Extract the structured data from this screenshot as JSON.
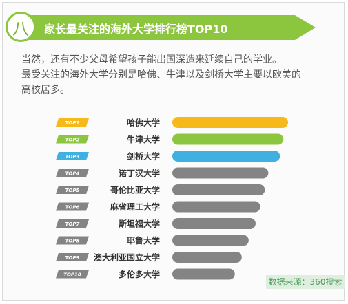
{
  "header": {
    "number": "八",
    "title": "家长最关注的海外大学排行榜TOP10"
  },
  "intro": {
    "line1": "当然，还有不少父母希望孩子能出国深造来延续自己的学业。",
    "line2": "最受关注的海外大学分别是哈佛、牛津以及剑桥大学主要以欧美的",
    "line3": "高校居多。"
  },
  "chart_data": {
    "type": "bar",
    "orientation": "horizontal",
    "ranks": [
      "TOP1",
      "TOP2",
      "TOP3",
      "TOP4",
      "TOP5",
      "TOP6",
      "TOP7",
      "TOP8",
      "TOP9",
      "TOP10"
    ],
    "categories": [
      "哈佛大学",
      "牛津大学",
      "剑桥大学",
      "诺丁汉大学",
      "哥伦比亚大学",
      "麻省理工大学",
      "斯坦福大学",
      "耶鲁大学",
      "澳大利亚国立大学",
      "多伦多大学"
    ],
    "values": [
      100,
      96,
      93,
      83,
      80,
      76,
      72,
      66,
      60,
      54
    ],
    "colors": [
      "#f7b81a",
      "#8cc63f",
      "#3fb1e1",
      "#848484",
      "#848484",
      "#848484",
      "#848484",
      "#848484",
      "#848484",
      "#848484"
    ]
  },
  "footer": {
    "source": "数据来源：360搜索"
  }
}
